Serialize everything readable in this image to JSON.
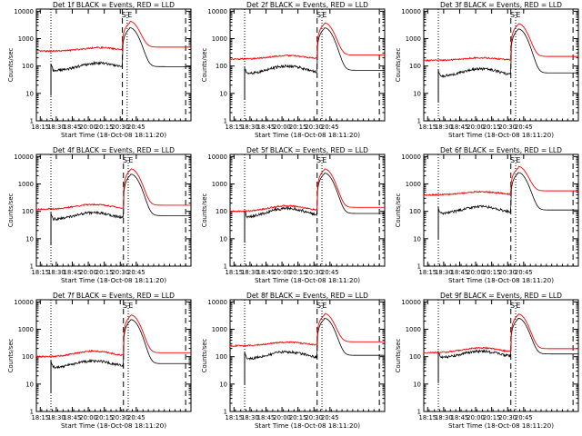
{
  "chart_data": [
    {
      "type": "line",
      "title": "Det 1f BLACK = Events, RED = LLD",
      "xlabel": "Start Time (18-Oct-08 18:11:20)",
      "ylabel": "Counts/sec",
      "x_ticks": [
        "18:15",
        "18:30",
        "18:45",
        "20:00",
        "20:15",
        "20:30",
        "20:45"
      ],
      "y_ticks": [
        "1",
        "10",
        "100",
        "1000",
        "10000"
      ],
      "y_scale": "log",
      "ylim": [
        1,
        12000
      ],
      "x_domain_minutes": [
        0,
        145
      ],
      "marker_labels": [
        "S",
        "E"
      ],
      "events": {
        "name": "Events",
        "color": "#000000",
        "base": 68,
        "start": "18:25",
        "peak_level": 130,
        "peak_time": "20:10",
        "jump": "20:32",
        "flare_peak": 2400
      },
      "lld": {
        "name": "LLD",
        "color": "#ff0000",
        "base": 350,
        "peak_level": 470,
        "flare_peak": 3800
      }
    },
    {
      "type": "line",
      "title": "Det 2f BLACK = Events, RED = LLD",
      "xlabel": "Start Time (18-Oct-08 18:11:20)",
      "ylabel": "Counts/sec",
      "x_ticks": [
        "18:15",
        "18:30",
        "18:45",
        "20:00",
        "20:15",
        "20:30",
        "20:45"
      ],
      "y_ticks": [
        "1",
        "10",
        "100",
        "1000",
        "10000"
      ],
      "y_scale": "log",
      "ylim": [
        1,
        12000
      ],
      "x_domain_minutes": [
        0,
        145
      ],
      "marker_labels": [
        "S",
        "E"
      ],
      "events": {
        "name": "Events",
        "color": "#000000",
        "base": 50,
        "start": "18:25",
        "peak_level": 100,
        "peak_time": "20:05",
        "jump": "20:33",
        "flare_peak": 2400
      },
      "lld": {
        "name": "LLD",
        "color": "#ff0000",
        "base": 180,
        "peak_level": 240,
        "flare_peak": 3500
      }
    },
    {
      "type": "line",
      "title": "Det 3f BLACK = Events, RED = LLD",
      "xlabel": "Start Time (18-Oct-08 18:11:20)",
      "ylabel": "Counts/sec",
      "x_ticks": [
        "18:15",
        "18:30",
        "18:45",
        "20:00",
        "20:15",
        "20:30",
        "20:45"
      ],
      "y_ticks": [
        "1",
        "10",
        "100",
        "1000",
        "10000"
      ],
      "y_scale": "log",
      "ylim": [
        1,
        12000
      ],
      "x_domain_minutes": [
        0,
        145
      ],
      "marker_labels": [
        "S",
        "E"
      ],
      "events": {
        "name": "Events",
        "color": "#000000",
        "base": 40,
        "start": "18:25",
        "peak_level": 80,
        "peak_time": "20:05",
        "jump": "20:33",
        "flare_peak": 2200
      },
      "lld": {
        "name": "LLD",
        "color": "#ff0000",
        "base": 160,
        "peak_level": 200,
        "flare_peak": 3300
      }
    },
    {
      "type": "line",
      "title": "Det 4f BLACK = Events, RED = LLD",
      "xlabel": "Start Time (18-Oct-08 18:11:20)",
      "ylabel": "Counts/sec",
      "x_ticks": [
        "18:15",
        "18:30",
        "18:45",
        "20:00",
        "20:15",
        "20:30",
        "20:45"
      ],
      "y_ticks": [
        "1",
        "10",
        "100",
        "1000",
        "10000"
      ],
      "y_scale": "log",
      "ylim": [
        1,
        12000
      ],
      "x_domain_minutes": [
        0,
        145
      ],
      "marker_labels": [
        "S",
        "E"
      ],
      "events": {
        "name": "Events",
        "color": "#000000",
        "base": 50,
        "start": "18:25",
        "peak_level": 90,
        "peak_time": "20:05",
        "jump": "20:33",
        "flare_peak": 2200
      },
      "lld": {
        "name": "LLD",
        "color": "#ff0000",
        "base": 120,
        "peak_level": 180,
        "flare_peak": 3400
      }
    },
    {
      "type": "line",
      "title": "Det 5f BLACK = Events, RED = LLD",
      "xlabel": "Start Time (18-Oct-08 18:11:20)",
      "ylabel": "Counts/sec",
      "x_ticks": [
        "18:15",
        "18:30",
        "18:45",
        "20:00",
        "20:15",
        "20:30",
        "20:45"
      ],
      "y_ticks": [
        "1",
        "10",
        "100",
        "1000",
        "10000"
      ],
      "y_scale": "log",
      "ylim": [
        1,
        12000
      ],
      "x_domain_minutes": [
        0,
        145
      ],
      "marker_labels": [
        "S",
        "E"
      ],
      "events": {
        "name": "Events",
        "color": "#000000",
        "base": 60,
        "start": "18:25",
        "peak_level": 130,
        "peak_time": "20:05",
        "jump": "20:33",
        "flare_peak": 2400
      },
      "lld": {
        "name": "LLD",
        "color": "#ff0000",
        "base": 100,
        "peak_level": 160,
        "flare_peak": 3400
      }
    },
    {
      "type": "line",
      "title": "Det 6f BLACK = Events, RED = LLD",
      "xlabel": "Start Time (18-Oct-08 18:11:20)",
      "ylabel": "Counts/sec",
      "x_ticks": [
        "18:15",
        "18:30",
        "18:45",
        "20:00",
        "20:15",
        "20:30",
        "20:45"
      ],
      "y_ticks": [
        "1",
        "10",
        "100",
        "1000",
        "10000"
      ],
      "y_scale": "log",
      "ylim": [
        1,
        12000
      ],
      "x_domain_minutes": [
        0,
        145
      ],
      "marker_labels": [
        "S",
        "E"
      ],
      "events": {
        "name": "Events",
        "color": "#000000",
        "base": 80,
        "start": "18:25",
        "peak_level": 150,
        "peak_time": "20:05",
        "jump": "20:33",
        "flare_peak": 2500
      },
      "lld": {
        "name": "LLD",
        "color": "#ff0000",
        "base": 400,
        "peak_level": 520,
        "flare_peak": 3800
      }
    },
    {
      "type": "line",
      "title": "Det 7f BLACK = Events, RED = LLD",
      "xlabel": "Start Time (18-Oct-08 18:11:20)",
      "ylabel": "Counts/sec",
      "x_ticks": [
        "18:15",
        "18:30",
        "18:45",
        "20:00",
        "20:15",
        "20:30",
        "20:45"
      ],
      "y_ticks": [
        "1",
        "10",
        "100",
        "1000",
        "10000"
      ],
      "y_scale": "log",
      "ylim": [
        1,
        12000
      ],
      "x_domain_minutes": [
        0,
        145
      ],
      "marker_labels": [
        "S",
        "E"
      ],
      "events": {
        "name": "Events",
        "color": "#000000",
        "base": 40,
        "start": "18:25",
        "peak_level": 70,
        "peak_time": "20:05",
        "jump": "20:33",
        "flare_peak": 2200
      },
      "lld": {
        "name": "LLD",
        "color": "#ff0000",
        "base": 100,
        "peak_level": 160,
        "flare_peak": 3200
      }
    },
    {
      "type": "line",
      "title": "Det 8f BLACK = Events, RED = LLD",
      "xlabel": "Start Time (18-Oct-08 18:11:20)",
      "ylabel": "Counts/sec",
      "x_ticks": [
        "18:15",
        "18:30",
        "18:45",
        "20:00",
        "20:15",
        "20:30",
        "20:45"
      ],
      "y_ticks": [
        "1",
        "10",
        "100",
        "1000",
        "10000"
      ],
      "y_scale": "log",
      "ylim": [
        1,
        12000
      ],
      "x_domain_minutes": [
        0,
        145
      ],
      "marker_labels": [
        "S",
        "E"
      ],
      "events": {
        "name": "Events",
        "color": "#000000",
        "base": 80,
        "start": "18:25",
        "peak_level": 150,
        "peak_time": "20:05",
        "jump": "20:33",
        "flare_peak": 2400
      },
      "lld": {
        "name": "LLD",
        "color": "#ff0000",
        "base": 250,
        "peak_level": 340,
        "flare_peak": 3400
      }
    },
    {
      "type": "line",
      "title": "Det 9f BLACK = Events, RED = LLD",
      "xlabel": "Start Time (18-Oct-08 18:11:20)",
      "ylabel": "Counts/sec",
      "x_ticks": [
        "18:15",
        "18:30",
        "18:45",
        "20:00",
        "20:15",
        "20:30",
        "20:45"
      ],
      "y_ticks": [
        "1",
        "10",
        "100",
        "1000",
        "10000"
      ],
      "y_scale": "log",
      "ylim": [
        1,
        12000
      ],
      "x_domain_minutes": [
        0,
        145
      ],
      "marker_labels": [
        "S",
        "E"
      ],
      "events": {
        "name": "Events",
        "color": "#000000",
        "base": 90,
        "start": "18:25",
        "peak_level": 160,
        "peak_time": "20:05",
        "jump": "20:33",
        "flare_peak": 2400
      },
      "lld": {
        "name": "LLD",
        "color": "#ff0000",
        "base": 140,
        "peak_level": 210,
        "flare_peak": 3400
      }
    }
  ]
}
